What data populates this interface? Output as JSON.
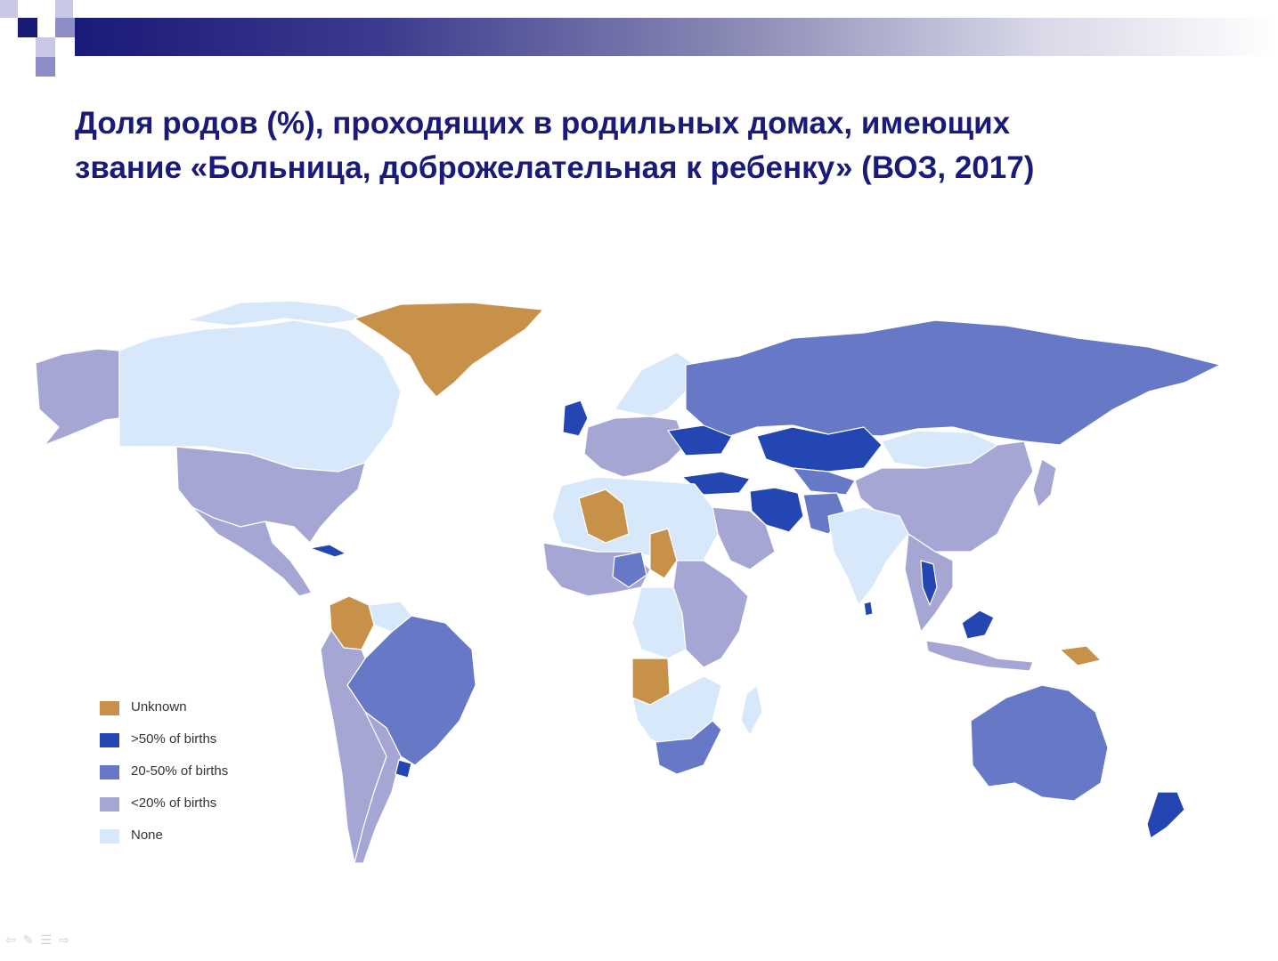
{
  "title": {
    "line1": "Доля родов (%), проходящих в родильных домах, имеющих",
    "line2": "звание «Больница, доброжелательная к ребенку» (ВОЗ, 2017)"
  },
  "legend": [
    {
      "label": "Unknown",
      "color": "#c8914a"
    },
    {
      "label": ">50% of births",
      "color": "#2446b2"
    },
    {
      "label": "20-50% of births",
      "color": "#6678c6"
    },
    {
      "label": "<20% of births",
      "color": "#a6a6d4"
    },
    {
      "label": "None",
      "color": "#d7e8fa"
    }
  ],
  "map_regions": [
    {
      "region": "North America",
      "category": "<20% of births"
    },
    {
      "region": "Canada",
      "category": "None"
    },
    {
      "region": "Greenland",
      "category": "Unknown"
    },
    {
      "region": "Brazil",
      "category": "20-50% of births"
    },
    {
      "region": "Colombia",
      "category": "Unknown"
    },
    {
      "region": "Russia",
      "category": "20-50% of births"
    },
    {
      "region": "China",
      "category": "<20% of births"
    },
    {
      "region": "Australia",
      "category": "20-50% of births"
    },
    {
      "region": "New Zealand",
      "category": ">50% of births"
    },
    {
      "region": "Iran",
      "category": ">50% of births"
    },
    {
      "region": "Kazakhstan",
      "category": ">50% of births"
    },
    {
      "region": "Turkey",
      "category": ">50% of births"
    },
    {
      "region": "Angola",
      "category": "Unknown"
    },
    {
      "region": "Algeria",
      "category": "Unknown"
    }
  ],
  "nav_icons": [
    "prev-arrow-icon",
    "pen-icon",
    "menu-icon",
    "next-arrow-icon"
  ]
}
